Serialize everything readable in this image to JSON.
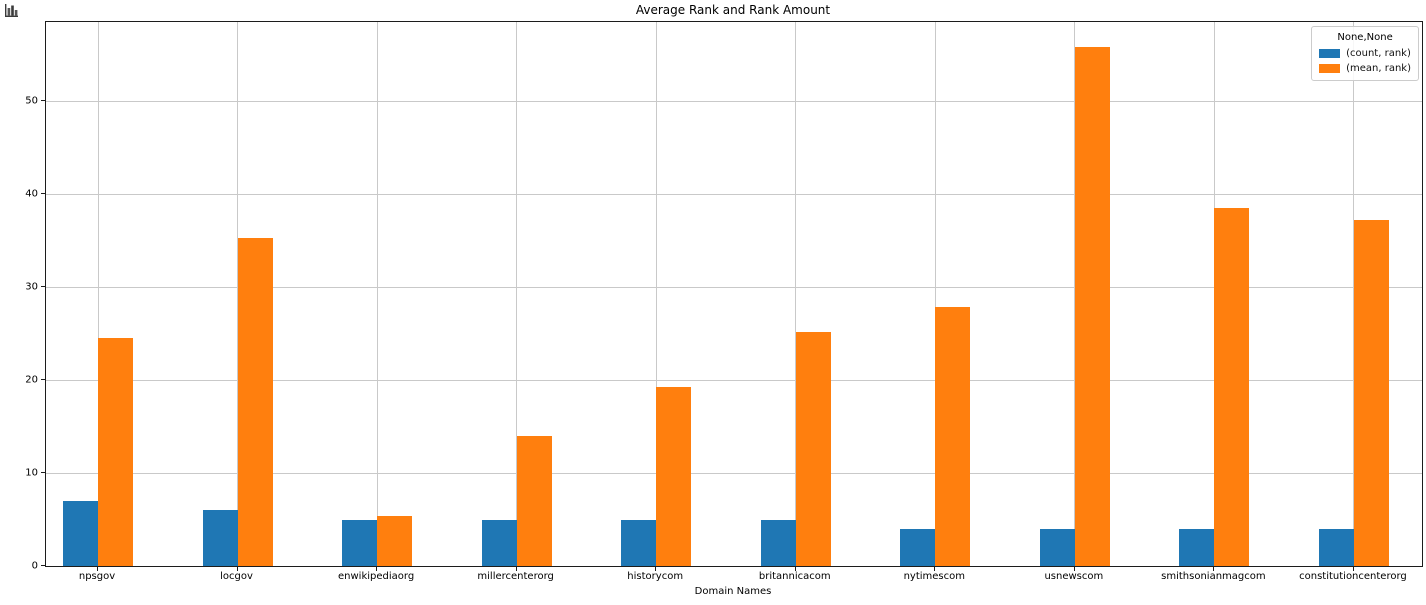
{
  "window": {
    "icon_name": "bar-chart-icon"
  },
  "chart_data": {
    "type": "bar",
    "title": "Average Rank and Rank Amount",
    "xlabel": "Domain Names",
    "ylabel": "",
    "categories": [
      "npsgov",
      "locgov",
      "enwikipediaorg",
      "millercenterorg",
      "historycom",
      "britannicacom",
      "nytimescom",
      "usnewscom",
      "smithsonianmagcom",
      "constitutioncenterorg"
    ],
    "series": [
      {
        "name": "(count, rank)",
        "color": "#1f77b4",
        "values": [
          7,
          6,
          5,
          5,
          5,
          5,
          4,
          4,
          4,
          4
        ]
      },
      {
        "name": "(mean, rank)",
        "color": "#ff7f0e",
        "values": [
          24.5,
          35.3,
          5.4,
          14.0,
          19.2,
          25.2,
          27.8,
          55.8,
          38.5,
          37.2
        ]
      }
    ],
    "legend": {
      "title": "None,None",
      "position": "upper right"
    },
    "y_ticks": [
      0,
      10,
      20,
      30,
      40,
      50
    ],
    "ylim": [
      0,
      58.5
    ],
    "grid": true,
    "grid_color": "#c9c9c9"
  }
}
